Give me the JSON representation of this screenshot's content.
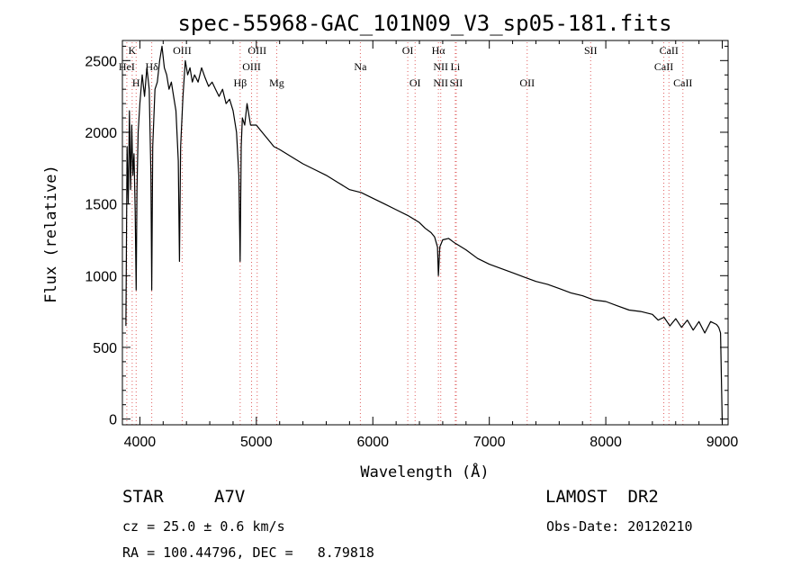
{
  "chart_data": {
    "type": "line",
    "title": "spec-55968-GAC_101N09_V3_sp05-181.fits",
    "xlabel": "Wavelength (Å)",
    "ylabel": "Flux (relative)",
    "xlim": [
      3850,
      9050
    ],
    "ylim": [
      -40,
      2640
    ],
    "x_ticks": [
      4000,
      5000,
      6000,
      7000,
      8000,
      9000
    ],
    "y_ticks": [
      0,
      500,
      1000,
      1500,
      2000,
      2500
    ],
    "grid": false,
    "series": [
      {
        "x": [
          3880,
          3890,
          3900,
          3910,
          3920,
          3930,
          3940,
          3950,
          3960,
          3968,
          3975,
          3985,
          4000,
          4020,
          4040,
          4060,
          4080,
          4095,
          4102,
          4110,
          4130,
          4150,
          4170,
          4190,
          4210,
          4230,
          4250,
          4270,
          4290,
          4310,
          4330,
          4340,
          4350,
          4370,
          4390,
          4410,
          4430,
          4450,
          4470,
          4500,
          4530,
          4560,
          4590,
          4620,
          4650,
          4680,
          4710,
          4740,
          4770,
          4800,
          4830,
          4850,
          4861,
          4870,
          4880,
          4900,
          4920,
          4950,
          5000,
          5050,
          5100,
          5150,
          5200,
          5300,
          5400,
          5500,
          5600,
          5700,
          5800,
          5900,
          6000,
          6100,
          6200,
          6300,
          6400,
          6450,
          6500,
          6530,
          6555,
          6563,
          6575,
          6600,
          6650,
          6700,
          6800,
          6900,
          7000,
          7100,
          7200,
          7300,
          7400,
          7500,
          7600,
          7700,
          7800,
          7900,
          8000,
          8100,
          8200,
          8300,
          8400,
          8450,
          8500,
          8550,
          8600,
          8650,
          8700,
          8750,
          8800,
          8850,
          8900,
          8950,
          8970,
          8985,
          9000
        ],
        "y": [
          650,
          1900,
          1500,
          2150,
          1600,
          2050,
          1700,
          1850,
          1450,
          900,
          1600,
          2000,
          2200,
          2400,
          2250,
          2450,
          2300,
          1700,
          900,
          1900,
          2300,
          2350,
          2500,
          2600,
          2450,
          2400,
          2300,
          2350,
          2250,
          2150,
          1800,
          1100,
          1900,
          2250,
          2500,
          2400,
          2450,
          2350,
          2400,
          2350,
          2450,
          2380,
          2320,
          2350,
          2300,
          2250,
          2300,
          2200,
          2230,
          2150,
          2000,
          1700,
          1100,
          1900,
          2100,
          2050,
          2200,
          2050,
          2050,
          2000,
          1950,
          1900,
          1880,
          1830,
          1780,
          1740,
          1700,
          1650,
          1600,
          1580,
          1540,
          1500,
          1460,
          1420,
          1370,
          1330,
          1300,
          1270,
          1200,
          1000,
          1200,
          1250,
          1260,
          1230,
          1180,
          1120,
          1080,
          1050,
          1020,
          990,
          960,
          940,
          910,
          880,
          860,
          830,
          820,
          790,
          760,
          750,
          730,
          690,
          710,
          650,
          700,
          640,
          690,
          620,
          680,
          600,
          680,
          660,
          640,
          600,
          -30
        ]
      }
    ],
    "line_markers": [
      {
        "label": "K",
        "x": 3934,
        "row": 0
      },
      {
        "label": "HeI",
        "x": 3888,
        "row": 1
      },
      {
        "label": "Hδ",
        "x": 4102,
        "row": 1
      },
      {
        "label": "H",
        "x": 3968,
        "row": 2
      },
      {
        "label": "OIII",
        "x": 4363,
        "row": 0
      },
      {
        "label": "OIII",
        "x": 5007,
        "row": 0
      },
      {
        "label": "OIII",
        "x": 4959,
        "row": 1
      },
      {
        "label": "Hβ",
        "x": 4861,
        "row": 2
      },
      {
        "label": "Mg",
        "x": 5175,
        "row": 2
      },
      {
        "label": "Na",
        "x": 5893,
        "row": 1
      },
      {
        "label": "OI",
        "x": 6300,
        "row": 0
      },
      {
        "label": "OI",
        "x": 6363,
        "row": 2
      },
      {
        "label": "Hα",
        "x": 6563,
        "row": 0
      },
      {
        "label": "NII",
        "x": 6583,
        "row": 1
      },
      {
        "label": "Li",
        "x": 6708,
        "row": 1
      },
      {
        "label": "NII",
        "x": 6583,
        "row": 2
      },
      {
        "label": "SII",
        "x": 6716,
        "row": 2
      },
      {
        "label": "OII",
        "x": 7325,
        "row": 2
      },
      {
        "label": "SII",
        "x": 7870,
        "row": 0
      },
      {
        "label": "CaII",
        "x": 8542,
        "row": 0
      },
      {
        "label": "CaII",
        "x": 8498,
        "row": 1
      },
      {
        "label": "CaII",
        "x": 8662,
        "row": 2
      }
    ]
  },
  "info": {
    "object_class": "STAR",
    "subclass": "A7V",
    "survey": "LAMOST  DR2",
    "cz_line": "cz = 25.0 ± 0.6 km/s",
    "obs_date": "Obs-Date: 20120210",
    "coords": "RA = 100.44796, DEC =   8.79818"
  },
  "colors": {
    "spectrum": "#000000",
    "marker_lines": "#e06060",
    "background": "#ffffff"
  }
}
